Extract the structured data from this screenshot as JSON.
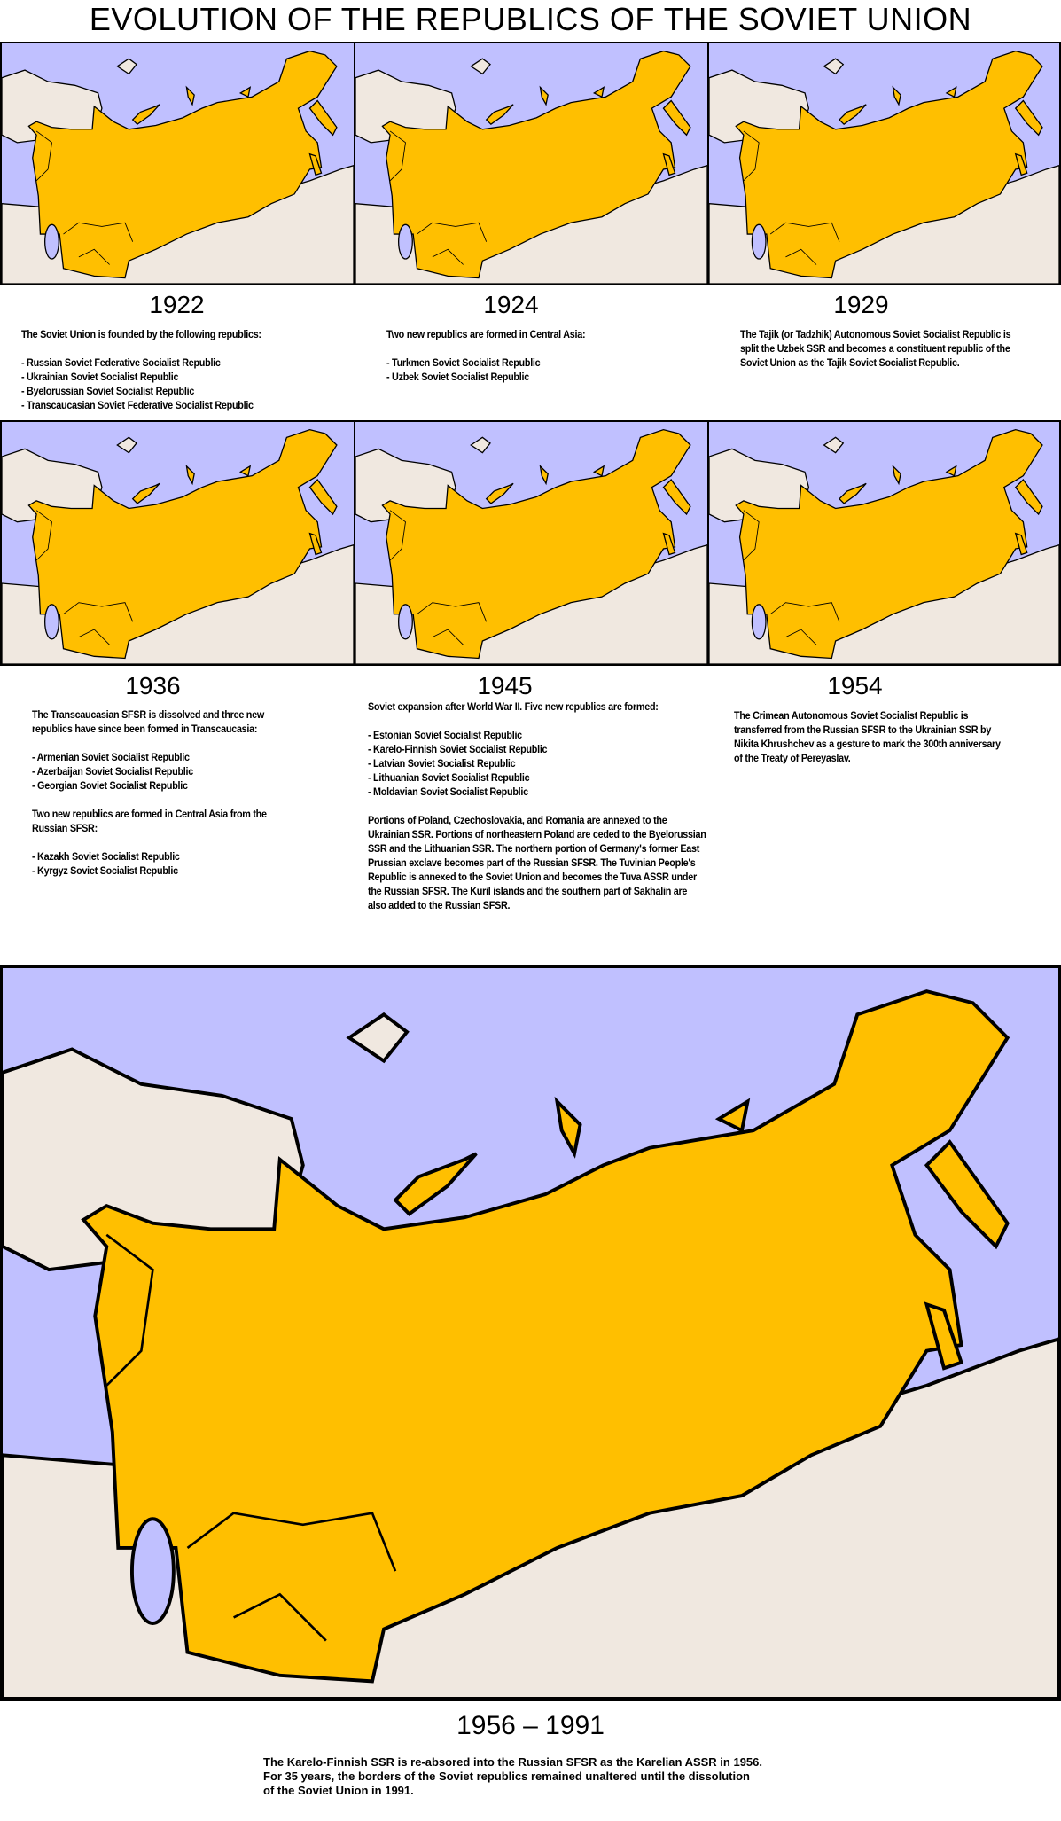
{
  "title": "EVOLUTION OF THE REPUBLICS OF THE SOVIET UNION",
  "colors": {
    "sea": "#c0c0ff",
    "land": "#f0e8e0",
    "soviet_union": "#ffbf00",
    "border": "#000000"
  },
  "panels": [
    {
      "year": "1922",
      "text": "The Soviet Union is founded by the following republics:\n\n- Russian Soviet Federative Socialist Republic\n- Ukrainian Soviet Socialist Republic\n- Byelorussian Soviet Socialist Republic\n- Transcaucasian Soviet Federative Socialist Republic"
    },
    {
      "year": "1924",
      "text": "Two new republics are formed in Central Asia:\n\n- Turkmen Soviet Socialist Republic\n- Uzbek Soviet Socialist Republic"
    },
    {
      "year": "1929",
      "text": "The Tajik (or Tadzhik) Autonomous Soviet Socialist Republic is split the Uzbek SSR and becomes a constituent republic of the Soviet Union as the Tajik Soviet Socialist Republic."
    },
    {
      "year": "1936",
      "text": "The Transcaucasian SFSR is dissolved and three new republics have since been formed in Transcaucasia:\n\n- Armenian Soviet Socialist Republic\n- Azerbaijan Soviet Socialist Republic\n- Georgian Soviet Socialist Republic\n\nTwo new republics are formed in Central Asia from the Russian SFSR:\n\n- Kazakh Soviet Socialist Republic\n- Kyrgyz Soviet Socialist Republic"
    },
    {
      "year": "1945",
      "text": "Soviet expansion after World War II.  Five new republics are formed:\n\n- Estonian Soviet Socialist Republic\n- Karelo-Finnish Soviet Socialist Republic\n- Latvian Soviet Socialist Republic\n- Lithuanian Soviet Socialist Republic\n- Moldavian Soviet Socialist Republic\n\nPortions of Poland, Czechoslovakia, and Romania are annexed to the Ukrainian SSR.  Portions of northeastern Poland are ceded to the Byelorussian SSR and the Lithuanian SSR. The northern portion of Germany's former East Prussian exclave becomes part of the Russian SFSR.  The Tuvinian People's Republic is annexed to the Soviet Union and becomes the Tuva ASSR under the Russian SFSR.  The Kuril islands and the southern part of Sakhalin are also added to the Russian SFSR."
    },
    {
      "year": "1954",
      "text": "The Crimean Autonomous Soviet Socialist Republic is transferred from the Russian SFSR to the Ukrainian SSR by Nikita Khrushchev as a gesture to mark the 300th anniversary of the Treaty of Pereyaslav."
    }
  ],
  "final": {
    "year": "1956 – 1991",
    "text": "The Karelo-Finnish SSR is re-absored into the Russian SFSR as the Karelian ASSR in 1956.\nFor 35 years, the borders of the Soviet republics remained unaltered until the dissolution\nof the Soviet Union in 1991."
  }
}
